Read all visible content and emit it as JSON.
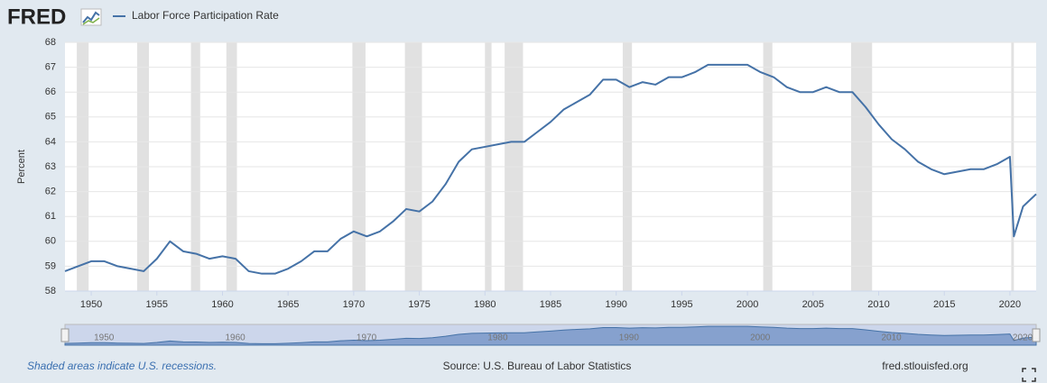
{
  "logo": "FRED",
  "chart_data": {
    "type": "line",
    "y_label": "Percent",
    "series": [
      {
        "name": "Labor Force Participation Rate",
        "color": "#4572a7",
        "x": [
          1948,
          1949,
          1950,
          1951,
          1952,
          1953,
          1954,
          1955,
          1956,
          1957,
          1958,
          1959,
          1960,
          1961,
          1962,
          1963,
          1964,
          1965,
          1966,
          1967,
          1968,
          1969,
          1970,
          1971,
          1972,
          1973,
          1974,
          1975,
          1976,
          1977,
          1978,
          1979,
          1980,
          1981,
          1982,
          1983,
          1984,
          1985,
          1986,
          1987,
          1988,
          1989,
          1990,
          1991,
          1992,
          1993,
          1994,
          1995,
          1996,
          1997,
          1998,
          1999,
          2000,
          2001,
          2002,
          2003,
          2004,
          2005,
          2006,
          2007,
          2008,
          2009,
          2010,
          2011,
          2012,
          2013,
          2014,
          2015,
          2016,
          2017,
          2018,
          2019,
          2020,
          2020.3,
          2021,
          2022
        ],
        "values": [
          58.8,
          59.0,
          59.2,
          59.2,
          59.0,
          58.9,
          58.8,
          59.3,
          60.0,
          59.6,
          59.5,
          59.3,
          59.4,
          59.3,
          58.8,
          58.7,
          58.7,
          58.9,
          59.2,
          59.6,
          59.6,
          60.1,
          60.4,
          60.2,
          60.4,
          60.8,
          61.3,
          61.2,
          61.6,
          62.3,
          63.2,
          63.7,
          63.8,
          63.9,
          64.0,
          64.0,
          64.4,
          64.8,
          65.3,
          65.6,
          65.9,
          66.5,
          66.5,
          66.2,
          66.4,
          66.3,
          66.6,
          66.6,
          66.8,
          67.1,
          67.1,
          67.1,
          67.1,
          66.8,
          66.6,
          66.2,
          66.0,
          66.0,
          66.2,
          66.0,
          66.0,
          65.4,
          64.7,
          64.1,
          63.7,
          63.2,
          62.9,
          62.7,
          62.8,
          62.9,
          62.9,
          63.1,
          63.4,
          60.2,
          61.4,
          61.9
        ]
      }
    ],
    "recessions": [
      [
        1948.9,
        1949.8
      ],
      [
        1953.5,
        1954.4
      ],
      [
        1957.6,
        1958.3
      ],
      [
        1960.3,
        1961.1
      ],
      [
        1969.9,
        1970.9
      ],
      [
        1973.9,
        1975.2
      ],
      [
        1980.0,
        1980.5
      ],
      [
        1981.5,
        1982.9
      ],
      [
        1990.5,
        1991.2
      ],
      [
        2001.2,
        2001.9
      ],
      [
        2007.9,
        2009.5
      ],
      [
        2020.1,
        2020.3
      ]
    ],
    "recession_color": "#e1e1e1",
    "xlim": [
      1948,
      2022
    ],
    "xticks": [
      1950,
      1955,
      1960,
      1965,
      1970,
      1975,
      1980,
      1985,
      1990,
      1995,
      2000,
      2005,
      2010,
      2015,
      2020
    ],
    "ylim": [
      58,
      68
    ],
    "yticks": [
      58,
      59,
      60,
      61,
      62,
      63,
      64,
      65,
      66,
      67,
      68
    ],
    "grid": true,
    "recession_note": "Shaded areas indicate U.S. recessions.",
    "source": "Source: U.S. Bureau of Labor Statistics",
    "site": "fred.stlouisfed.org"
  }
}
